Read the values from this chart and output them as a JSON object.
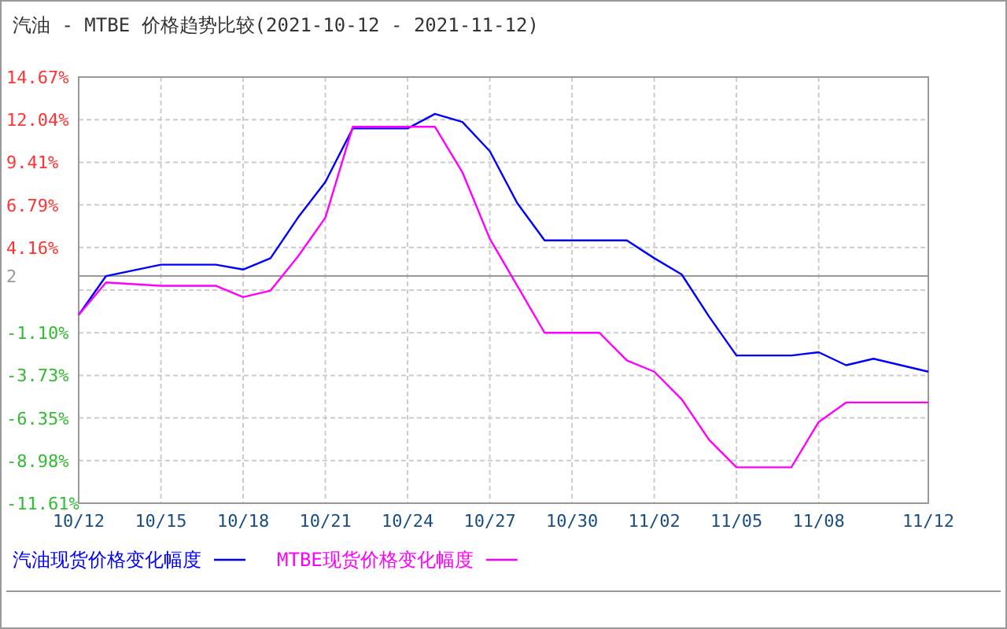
{
  "chart_data": {
    "type": "line",
    "title": "汽油 - MTBE 价格趋势比较(2021-10-12 - 2021-11-12)",
    "x": [
      "2021-10-12",
      "2021-10-13",
      "2021-10-15",
      "2021-10-17",
      "2021-10-18",
      "2021-10-19",
      "2021-10-20",
      "2021-10-21",
      "2021-10-22",
      "2021-10-24",
      "2021-10-25",
      "2021-10-26",
      "2021-10-27",
      "2021-10-28",
      "2021-10-29",
      "2021-10-31",
      "2021-11-01",
      "2021-11-02",
      "2021-11-03",
      "2021-11-04",
      "2021-11-05",
      "2021-11-07",
      "2021-11-08",
      "2021-11-09",
      "2021-11-10",
      "2021-11-12"
    ],
    "series": [
      {
        "name": "汽油现货价格变化幅度",
        "color": "#0000ff",
        "values": [
          0,
          2.4,
          3.1,
          3.1,
          2.8,
          3.5,
          6.0,
          8.2,
          11.5,
          11.5,
          12.4,
          11.9,
          10.1,
          6.9,
          4.6,
          4.6,
          4.6,
          3.5,
          2.5,
          -0.1,
          -2.5,
          -2.5,
          -2.3,
          -3.1,
          -2.7,
          -3.5
        ]
      },
      {
        "name": "MTBE现货价格变化幅度",
        "color": "#ff00ff",
        "values": [
          0,
          2.0,
          1.8,
          1.8,
          1.1,
          1.5,
          3.6,
          6.0,
          11.6,
          11.6,
          11.6,
          8.8,
          4.7,
          1.8,
          -1.1,
          -1.1,
          -2.8,
          -3.5,
          -5.2,
          -7.7,
          -9.4,
          -9.4,
          -6.6,
          -5.4,
          -5.4,
          -5.4
        ]
      }
    ],
    "xlim": [
      "2021-10-12",
      "2021-11-12"
    ],
    "xticks": [
      {
        "value": "2021-10-12",
        "label": "10/12"
      },
      {
        "value": "2021-10-15",
        "label": "10/15"
      },
      {
        "value": "2021-10-18",
        "label": "10/18"
      },
      {
        "value": "2021-10-21",
        "label": "10/21"
      },
      {
        "value": "2021-10-24",
        "label": "10/24"
      },
      {
        "value": "2021-10-27",
        "label": "10/27"
      },
      {
        "value": "2021-10-30",
        "label": "10/30"
      },
      {
        "value": "2021-11-02",
        "label": "11/02"
      },
      {
        "value": "2021-11-05",
        "label": "11/05"
      },
      {
        "value": "2021-11-08",
        "label": "11/08"
      },
      {
        "value": "2021-11-12",
        "label": "11/12"
      }
    ],
    "ylim": [
      -11.61,
      14.67
    ],
    "yticks": [
      {
        "value": -11.61,
        "label": "-11.61%"
      },
      {
        "value": -8.98,
        "label": "-8.98%"
      },
      {
        "value": -6.35,
        "label": "-6.35%"
      },
      {
        "value": -3.73,
        "label": "-3.73%"
      },
      {
        "value": -1.1,
        "label": "-1.10%"
      },
      {
        "value": 1.53,
        "label": null
      },
      {
        "value": 4.16,
        "label": "4.16%"
      },
      {
        "value": 6.79,
        "label": "6.79%"
      },
      {
        "value": 9.41,
        "label": "9.41%"
      },
      {
        "value": 12.04,
        "label": "12.04%"
      },
      {
        "value": 14.67,
        "label": "14.67%"
      }
    ],
    "ref_lines": [
      {
        "axis": "y",
        "value": 2.4,
        "label": "2",
        "color": "#999999"
      }
    ],
    "grid": true,
    "legend": "bottom left",
    "marker": "none",
    "line_style": "solid"
  }
}
